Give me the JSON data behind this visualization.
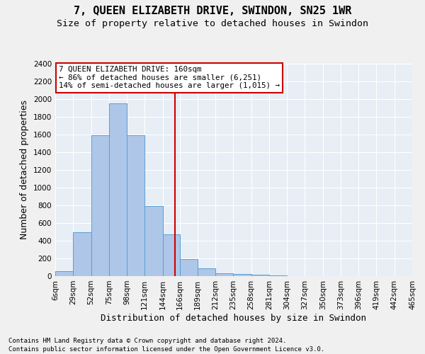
{
  "title": "7, QUEEN ELIZABETH DRIVE, SWINDON, SN25 1WR",
  "subtitle": "Size of property relative to detached houses in Swindon",
  "xlabel": "Distribution of detached houses by size in Swindon",
  "ylabel": "Number of detached properties",
  "footnote1": "Contains HM Land Registry data © Crown copyright and database right 2024.",
  "footnote2": "Contains public sector information licensed under the Open Government Licence v3.0.",
  "bin_labels": [
    "6sqm",
    "29sqm",
    "52sqm",
    "75sqm",
    "98sqm",
    "121sqm",
    "144sqm",
    "166sqm",
    "189sqm",
    "212sqm",
    "235sqm",
    "258sqm",
    "281sqm",
    "304sqm",
    "327sqm",
    "350sqm",
    "373sqm",
    "396sqm",
    "419sqm",
    "442sqm",
    "465sqm"
  ],
  "bar_values": [
    60,
    500,
    1590,
    1950,
    1590,
    790,
    470,
    195,
    90,
    35,
    25,
    20,
    5,
    2,
    0,
    0,
    0,
    0,
    0,
    0
  ],
  "bin_edges": [
    6,
    29,
    52,
    75,
    98,
    121,
    144,
    166,
    189,
    212,
    235,
    258,
    281,
    304,
    327,
    350,
    373,
    396,
    419,
    442,
    465
  ],
  "bar_color": "#aec6e8",
  "bar_edge_color": "#5a9fd4",
  "property_size": 160,
  "vline_color": "#cc0000",
  "annotation_text": "7 QUEEN ELIZABETH DRIVE: 160sqm\n← 86% of detached houses are smaller (6,251)\n14% of semi-detached houses are larger (1,015) →",
  "annotation_box_color": "#ffffff",
  "annotation_box_edge": "#cc0000",
  "ylim": [
    0,
    2400
  ],
  "yticks": [
    0,
    200,
    400,
    600,
    800,
    1000,
    1200,
    1400,
    1600,
    1800,
    2000,
    2200,
    2400
  ],
  "background_color": "#e8eef5",
  "grid_color": "#ffffff",
  "title_fontsize": 11,
  "subtitle_fontsize": 9.5,
  "axis_label_fontsize": 9,
  "tick_fontsize": 7.5,
  "footnote_fontsize": 6.5
}
